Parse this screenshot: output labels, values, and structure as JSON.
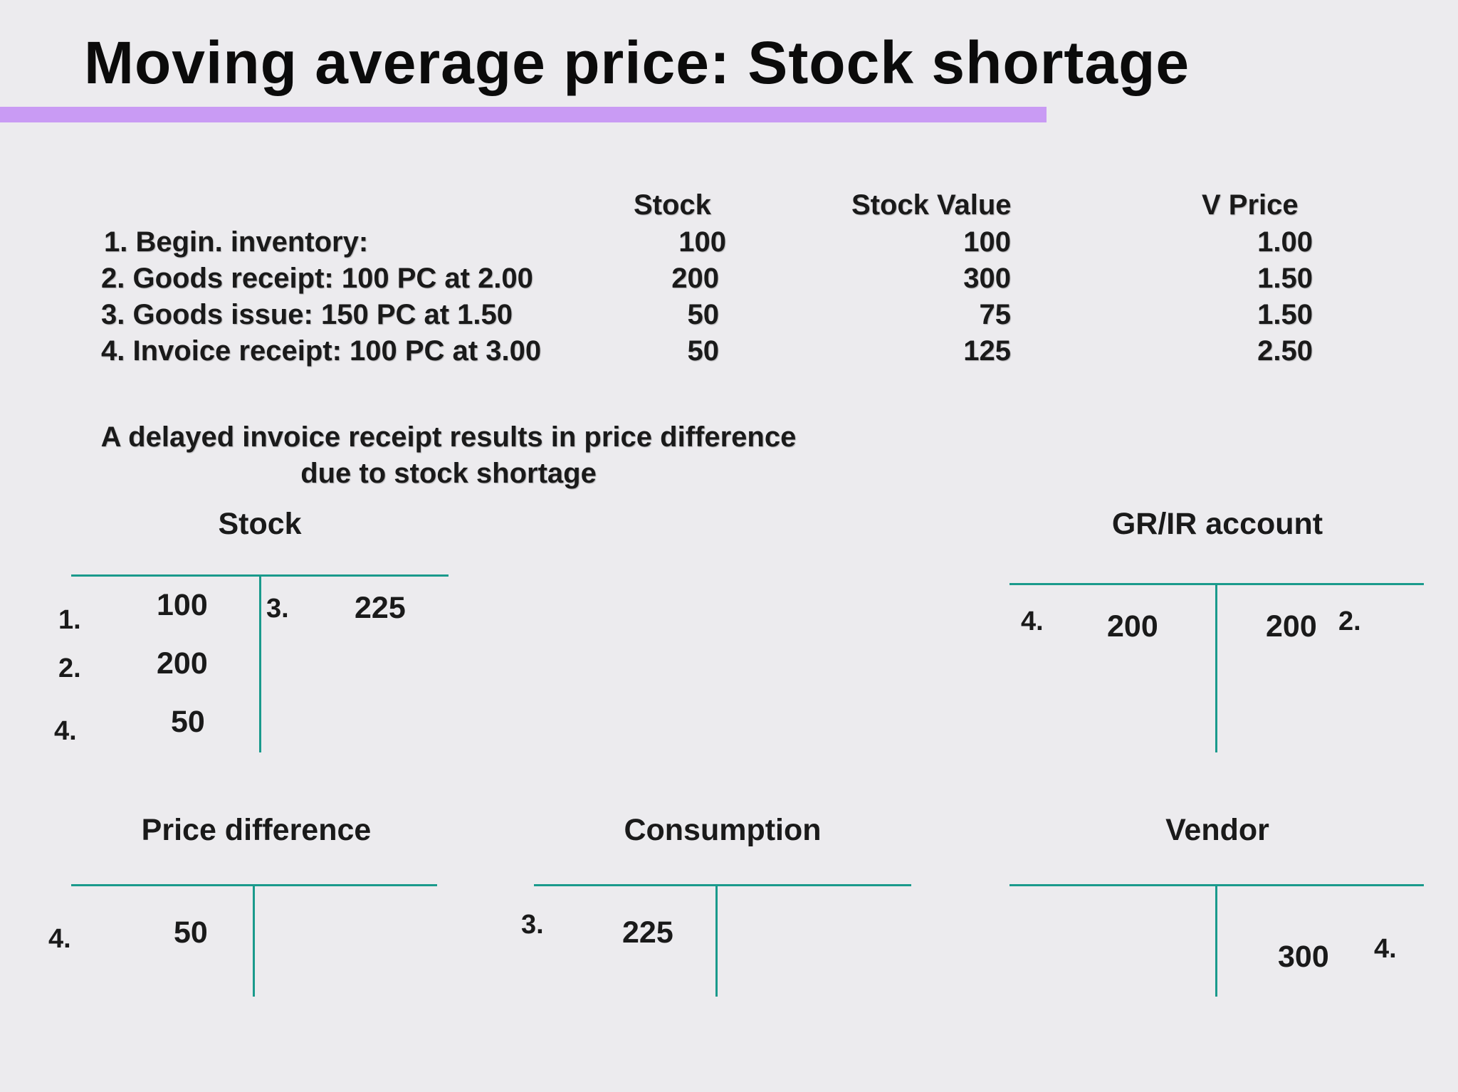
{
  "title": "Moving average price: Stock shortage",
  "table": {
    "headers": {
      "stock": "Stock",
      "stock_value": "Stock Value",
      "v_price": "V Price"
    },
    "rows": [
      {
        "label": "1. Begin. inventory:",
        "stock": "100",
        "stock_value": "100",
        "v_price": "1.00"
      },
      {
        "label": "2. Goods receipt: 100 PC at 2.00",
        "stock": "200",
        "stock_value": "300",
        "v_price": "1.50"
      },
      {
        "label": "3. Goods issue: 150 PC at 1.50",
        "stock": "50",
        "stock_value": "75",
        "v_price": "1.50"
      },
      {
        "label": "4.  Invoice receipt: 100 PC at 3.00",
        "stock": "50",
        "stock_value": "125",
        "v_price": "2.50"
      }
    ]
  },
  "note": {
    "line1": "A delayed invoice receipt results in price difference",
    "line2": "due to stock shortage"
  },
  "accounts": {
    "stock": {
      "title": "Stock",
      "debit": [
        {
          "ref": "1.",
          "amount": "100"
        },
        {
          "ref": "2.",
          "amount": "200"
        },
        {
          "ref": "4.",
          "amount": "50"
        }
      ],
      "credit": [
        {
          "ref": "3.",
          "amount": "225"
        }
      ]
    },
    "grir": {
      "title": "GR/IR account",
      "debit": [
        {
          "ref": "4.",
          "amount": "200"
        }
      ],
      "credit": [
        {
          "ref": "2.",
          "amount": "200"
        }
      ]
    },
    "price_difference": {
      "title": "Price difference",
      "debit": [
        {
          "ref": "4.",
          "amount": "50"
        }
      ]
    },
    "consumption": {
      "title": "Consumption",
      "debit": [
        {
          "ref": "3.",
          "amount": "225"
        }
      ]
    },
    "vendor": {
      "title": "Vendor",
      "credit": [
        {
          "ref": "4.",
          "amount": "300"
        }
      ]
    }
  },
  "colors": {
    "background": "#ecebee",
    "title_rule": "#c99bf4",
    "t_account_lines": "#1a9a8c"
  }
}
